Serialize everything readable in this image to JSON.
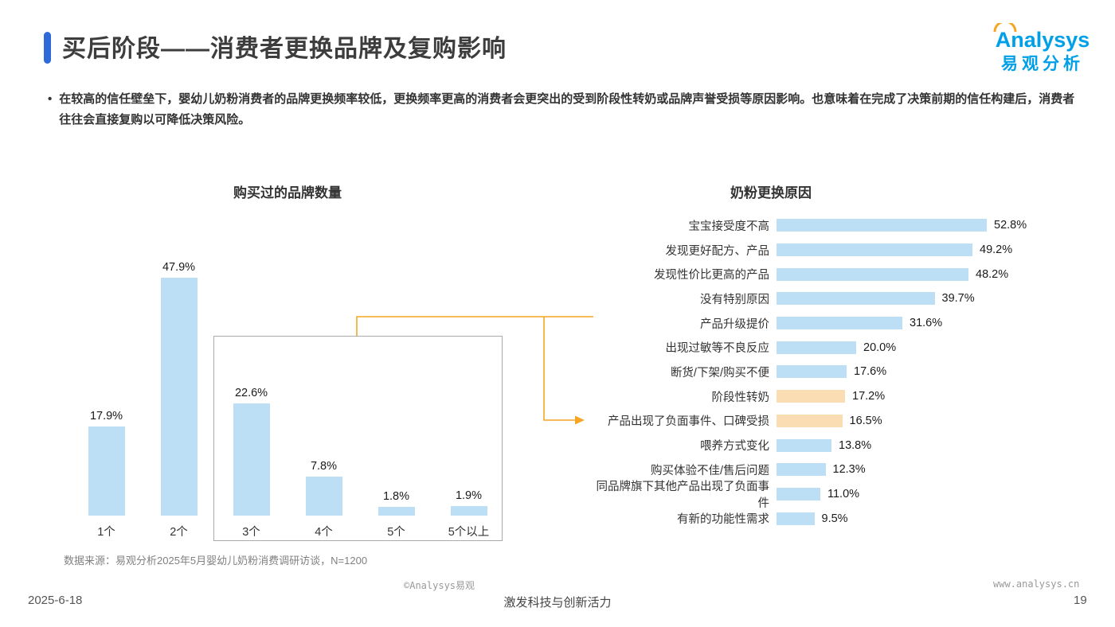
{
  "header": {
    "title": "买后阶段——消费者更换品牌及复购影响",
    "logo": {
      "brand": "Analysys",
      "subtitle": "易观分析"
    }
  },
  "summary": {
    "bullet_marker": "•",
    "text": "在较高的信任壁垒下，婴幼儿奶粉消费者的品牌更换频率较低，更换频率更高的消费者会更突出的受到阶段性转奶或品牌声誉受损等原因影响。也意味着在完成了决策前期的信任构建后，消费者往往会直接复购以可降低决策风险。"
  },
  "source_note": "数据来源：易观分析2025年5月婴幼儿奶粉消费调研访谈，N=1200",
  "footer": {
    "date": "2025-6-18",
    "copyright": "©Analysys易观",
    "slogan": "激发科技与创新活力",
    "website": "www.analysys.cn",
    "page_number": "19"
  },
  "colors": {
    "accent": "#2E6BD8",
    "bar_blue": "#BCDFF5",
    "highlight_peach": "#FADDB2",
    "connector_orange": "#F5A623",
    "logo_blue": "#00A0E9"
  },
  "chart_data": [
    {
      "type": "bar",
      "orientation": "vertical",
      "title": "购买过的品牌数量",
      "unit": "%",
      "categories": [
        "1个",
        "2个",
        "3个",
        "4个",
        "5个",
        "5个以上"
      ],
      "values": [
        17.9,
        47.9,
        22.6,
        7.8,
        1.8,
        1.9
      ],
      "value_labels": [
        "17.9%",
        "47.9%",
        "22.6%",
        "7.8%",
        "1.8%",
        "1.9%"
      ],
      "ylim": [
        0,
        50
      ],
      "grid": false,
      "highlight_box": {
        "from_category": "3个",
        "to_category": "5个以上"
      }
    },
    {
      "type": "bar",
      "orientation": "horizontal",
      "title": "奶粉更换原因",
      "unit": "%",
      "categories": [
        "宝宝接受度不高",
        "发现更好配方、产品",
        "发现性价比更高的产品",
        "没有特别原因",
        "产品升级提价",
        "出现过敏等不良反应",
        "断货/下架/购买不便",
        "阶段性转奶",
        "产品出现了负面事件、口碑受损",
        "喂养方式变化",
        "购买体验不佳/售后问题",
        "同品牌旗下其他产品出现了负面事件",
        "有新的功能性需求"
      ],
      "values": [
        52.8,
        49.2,
        48.2,
        39.7,
        31.6,
        20.0,
        17.6,
        17.2,
        16.5,
        13.8,
        12.3,
        11.0,
        9.5
      ],
      "value_labels": [
        "52.8%",
        "49.2%",
        "48.2%",
        "39.7%",
        "31.6%",
        "20.0%",
        "17.6%",
        "17.2%",
        "16.5%",
        "13.8%",
        "12.3%",
        "11.0%",
        "9.5%"
      ],
      "xlim": [
        0,
        60
      ],
      "grid": false,
      "highlight_indices": [
        7,
        8
      ],
      "highlighted_categories": [
        "阶段性转奶",
        "产品出现了负面事件、口碑受损"
      ]
    }
  ]
}
